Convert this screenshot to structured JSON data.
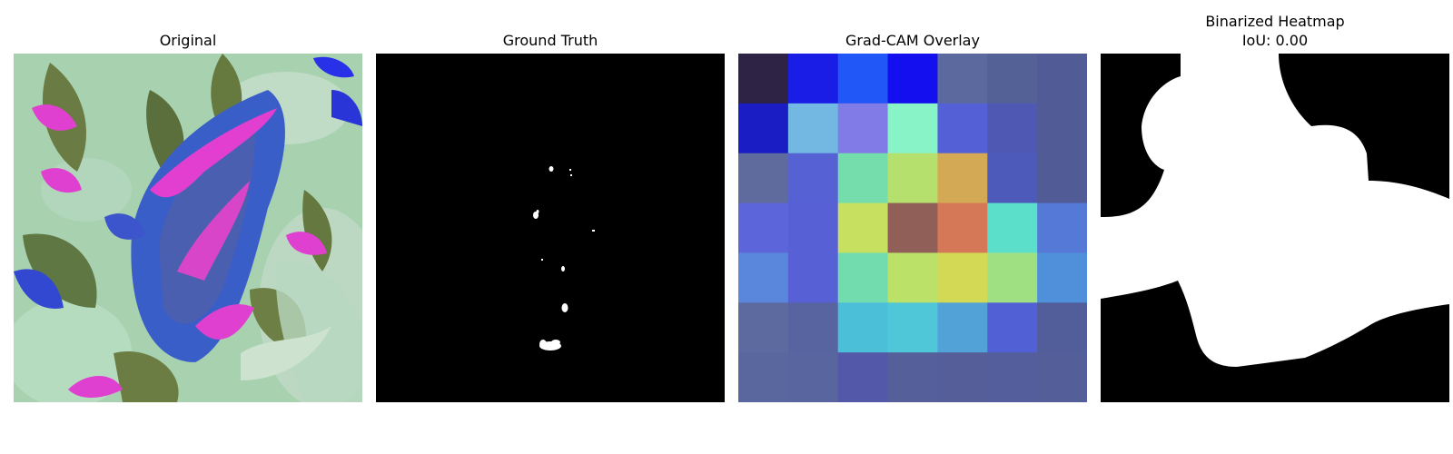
{
  "panels": [
    {
      "title": "Original"
    },
    {
      "title": "Ground Truth"
    },
    {
      "title": "Grad-CAM Overlay"
    },
    {
      "title": "Binarized Heatmap",
      "subtitle": "IoU: 0.00"
    }
  ],
  "gradcam": {
    "colors": [
      [
        "#2e2344",
        "#1a1de6",
        "#2257f7",
        "#140fee",
        "#5c699f",
        "#536197",
        "#515c96"
      ],
      [
        "#1a1cc4",
        "#73b8e2",
        "#807be6",
        "#89f3c8",
        "#5460d6",
        "#4f59b4",
        "#515c96"
      ],
      [
        "#5f6b9d",
        "#5661d4",
        "#75dcac",
        "#b5e06e",
        "#d4a956",
        "#4d5aba",
        "#515c96"
      ],
      [
        "#5c66da",
        "#5760d4",
        "#c8e05f",
        "#905f58",
        "#d47857",
        "#5bdfcb",
        "#5479d6"
      ],
      [
        "#5a87dc",
        "#5760d4",
        "#72dcae",
        "#bce168",
        "#d4d955",
        "#9fe082",
        "#5090da"
      ],
      [
        "#5d6a9f",
        "#58649f",
        "#4cbfd8",
        "#50c7d9",
        "#52a2d8",
        "#5260d6",
        "#525e9a"
      ],
      [
        "#5a679f",
        "#59659f",
        "#5358a8",
        "#55609a",
        "#555e99",
        "#545e9c",
        "#545e99"
      ]
    ]
  }
}
